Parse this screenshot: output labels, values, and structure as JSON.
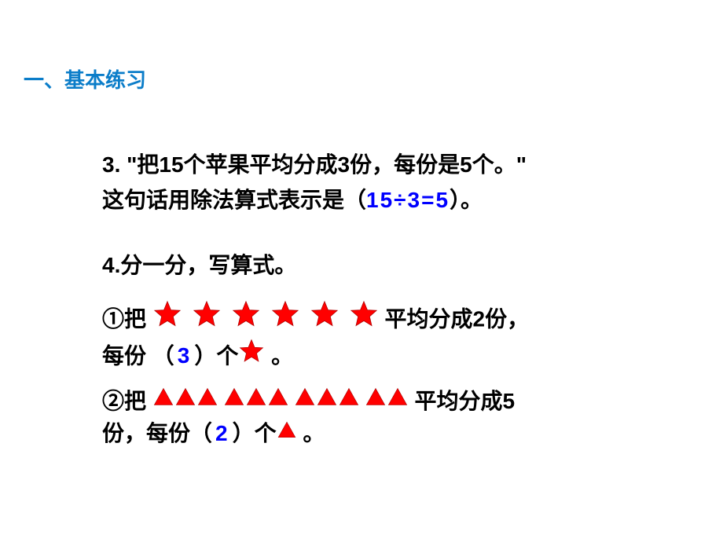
{
  "header": {
    "title": "一、基本练习"
  },
  "q3": {
    "line1": "3.  \"把15个苹果平均分成3份，每份是5个。\"",
    "line2_pre": "这句话用除法算式表示是（",
    "line2_answer": "15÷3=5",
    "line2_post": "）。"
  },
  "q4": {
    "title": "4.分一分，写算式。",
    "item1": {
      "pre": "①把 ",
      "star_count": 6,
      "mid": " 平均分成2份，",
      "line2_pre": "每份 （",
      "answer": "3",
      "line2_post": "）个",
      "line2_end": " 。"
    },
    "item2": {
      "pre": "②把 ",
      "tri_groups": [
        3,
        3,
        3,
        2
      ],
      "mid": " 平均分成5",
      "line2_pre": "份，每份（",
      "answer": "2",
      "line2_post": "）个",
      "line2_end": " 。"
    }
  },
  "styling": {
    "header_color": "#0b7dc9",
    "text_color": "#000000",
    "answer_color": "#0000ff",
    "star_fill": "#ff0000",
    "star_stroke": "#b00000",
    "triangle_fill": "#ff0000",
    "triangle_stroke": "#a00000",
    "background": "#ffffff",
    "body_fontsize": 28,
    "header_fontsize": 26,
    "star_size": 38,
    "star_gap": 12,
    "triangle_size": 28,
    "triangle_group_gap": 6,
    "inline_star_size": 34,
    "inline_tri_size": 26
  }
}
